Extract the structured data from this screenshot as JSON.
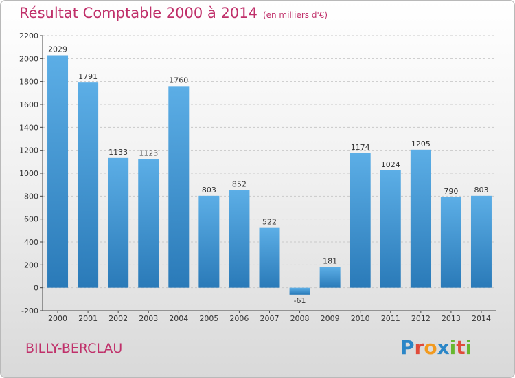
{
  "header": {
    "title": "Résultat Comptable 2000 à 2014",
    "unit": "(en milliers d'€)"
  },
  "footer": {
    "place": "BILLY-BERCLAU",
    "logo": "Proxiti"
  },
  "colors": {
    "title": "#c0306a",
    "bar_top": "#5caee6",
    "bar_bottom": "#2a7ab8"
  },
  "chart_data": {
    "type": "bar",
    "categories": [
      "2000",
      "2001",
      "2002",
      "2003",
      "2004",
      "2005",
      "2006",
      "2007",
      "2008",
      "2009",
      "2010",
      "2011",
      "2012",
      "2013",
      "2014"
    ],
    "values": [
      2029,
      1791,
      1133,
      1123,
      1760,
      803,
      852,
      522,
      -61,
      181,
      1174,
      1024,
      1205,
      790,
      803
    ],
    "ylim": [
      -200,
      2200
    ],
    "yticks": [
      -200,
      0,
      200,
      400,
      600,
      800,
      1000,
      1200,
      1400,
      1600,
      1800,
      2000,
      2200
    ],
    "grid": true
  }
}
